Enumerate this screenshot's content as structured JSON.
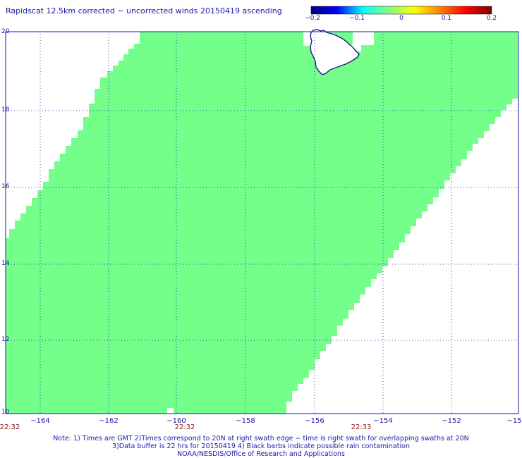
{
  "title": "Rapidscat 12.5km corrected − uncorrected winds 20150419 ascending",
  "colorbar": {
    "labels": [
      "−0.2",
      "−0.1",
      "0",
      "0.1",
      "0.2"
    ],
    "colors": [
      "#00007f",
      "#0000ff",
      "#00ffff",
      "#7fff7f",
      "#ffff00",
      "#ff7f00",
      "#ff0000",
      "#7f0000"
    ]
  },
  "map": {
    "swath_color": "#73ff8a",
    "coast_color": "#1a1a8c",
    "grid": "dotted",
    "x_ticks": [
      "−164",
      "−162",
      "−160",
      "−158",
      "−156",
      "−154",
      "−152",
      "−15"
    ],
    "y_ticks": [
      "20",
      "18",
      "16",
      "14",
      "12",
      "10"
    ],
    "times": [
      "22:32",
      "22:32",
      "22:33"
    ]
  },
  "notes": [
    "Note: 1) Times are GMT 2)Times correspond to 20N at right swath edge − time is right swath for overlapping swaths at 20N",
    "3)Data buffer is 22 hrs for 20150419 4) Black barbs indicate possible rain contamination",
    "NOAA/NESDIS/Office of Research and Applications"
  ]
}
